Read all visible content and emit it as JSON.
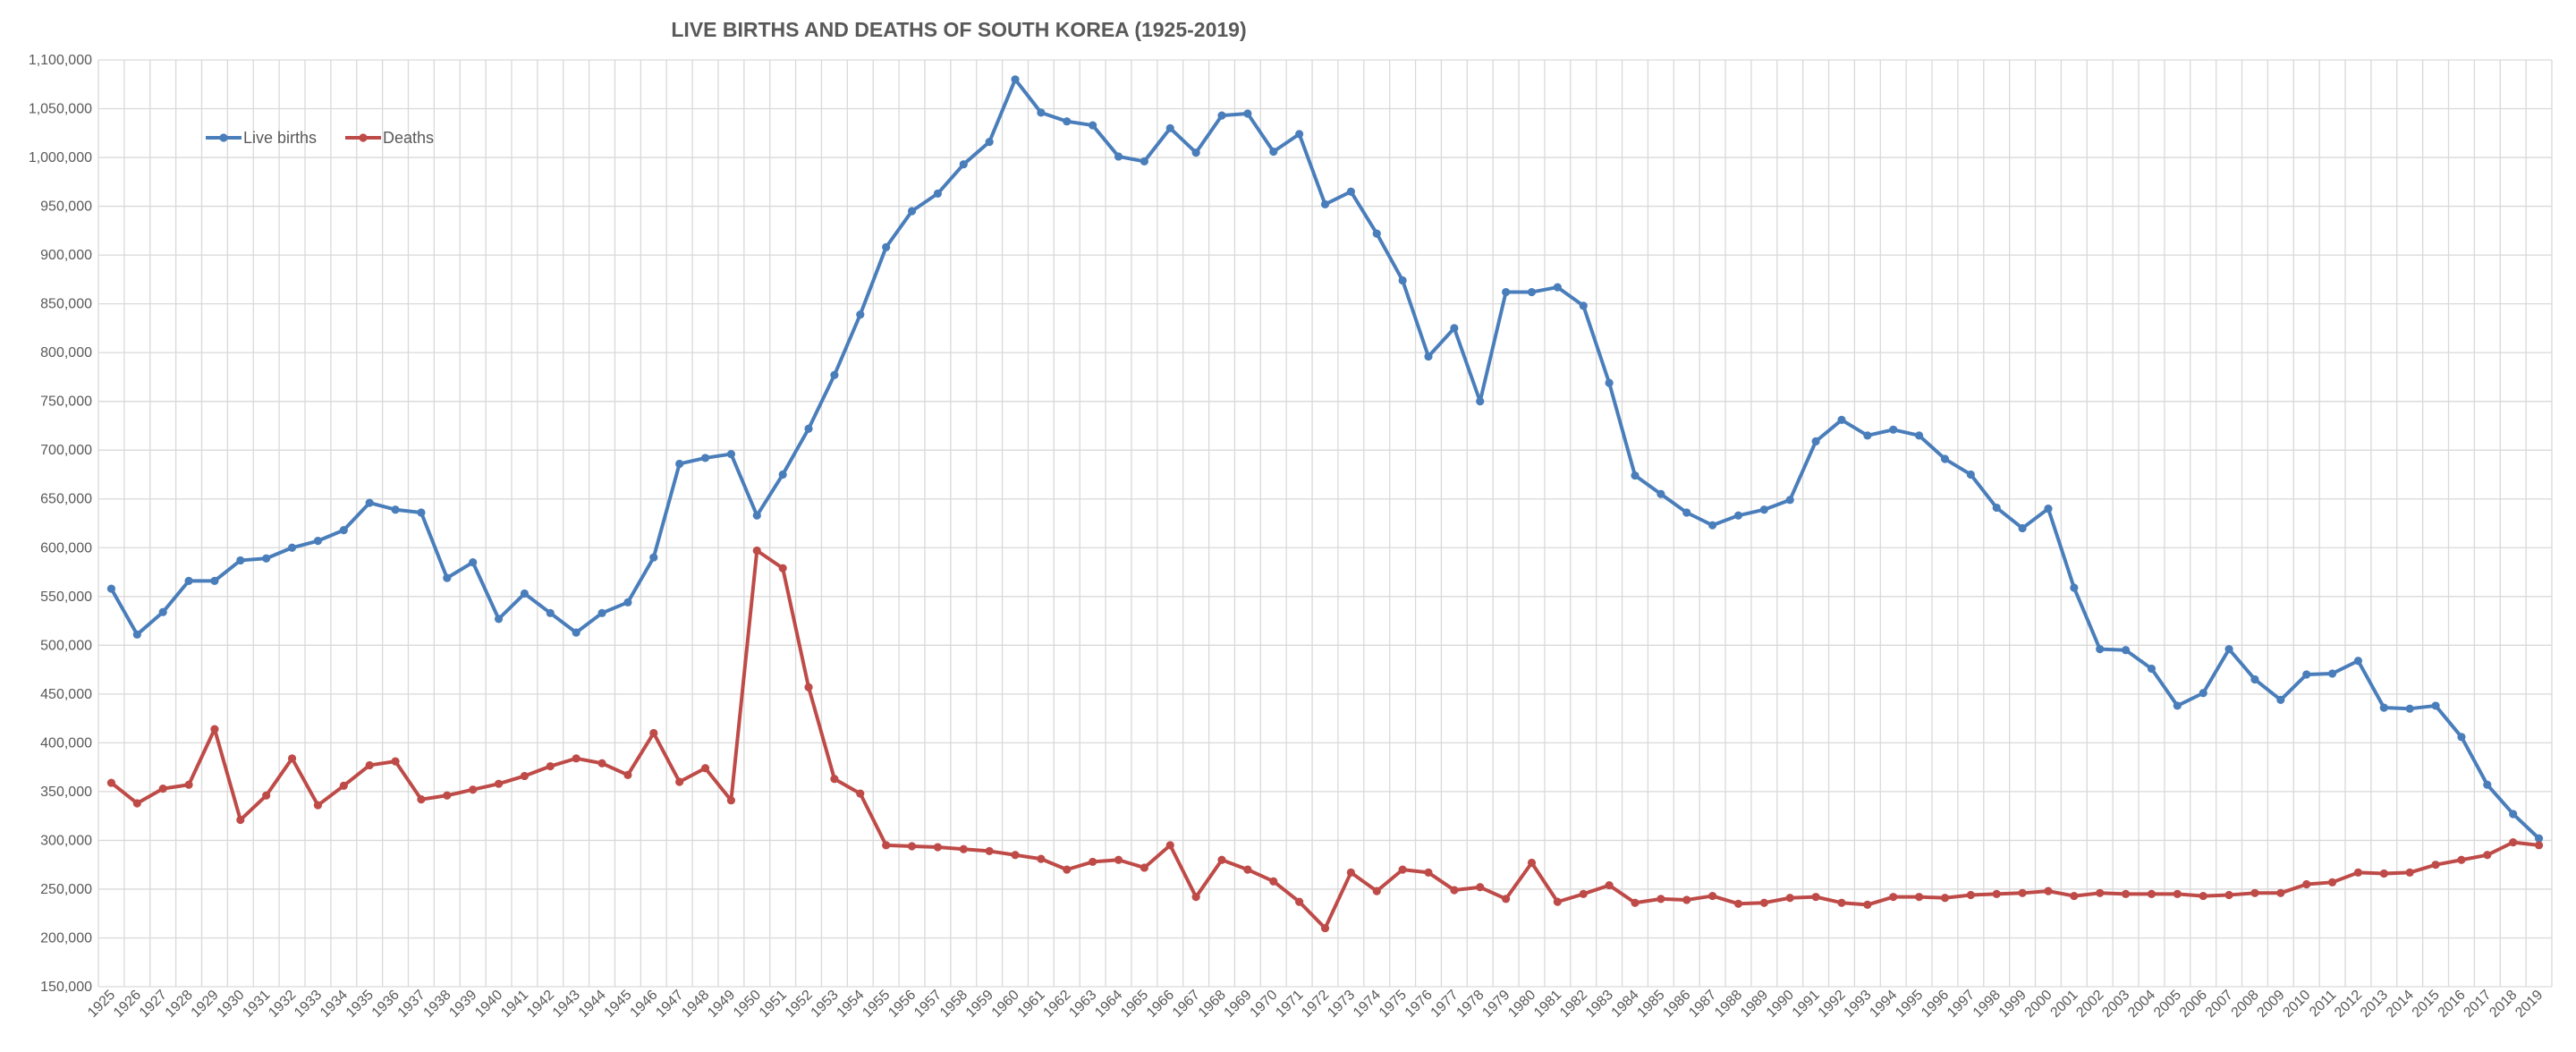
{
  "chart_data": {
    "type": "line",
    "title": "LIVE BIRTHS AND DEATHS OF SOUTH KOREA (1925-2019)",
    "xlabel": "",
    "ylabel": "",
    "x": [
      1925,
      1926,
      1927,
      1928,
      1929,
      1930,
      1931,
      1932,
      1933,
      1934,
      1935,
      1936,
      1937,
      1938,
      1939,
      1940,
      1941,
      1942,
      1943,
      1944,
      1945,
      1946,
      1947,
      1948,
      1949,
      1950,
      1951,
      1952,
      1953,
      1954,
      1955,
      1956,
      1957,
      1958,
      1959,
      1960,
      1961,
      1962,
      1963,
      1964,
      1965,
      1966,
      1967,
      1968,
      1969,
      1970,
      1971,
      1972,
      1973,
      1974,
      1975,
      1976,
      1977,
      1978,
      1979,
      1980,
      1981,
      1982,
      1983,
      1984,
      1985,
      1986,
      1987,
      1988,
      1989,
      1990,
      1991,
      1992,
      1993,
      1994,
      1995,
      1996,
      1997,
      1998,
      1999,
      2000,
      2001,
      2002,
      2003,
      2004,
      2005,
      2006,
      2007,
      2008,
      2009,
      2010,
      2011,
      2012,
      2013,
      2014,
      2015,
      2016,
      2017,
      2018,
      2019
    ],
    "ylim": [
      150000,
      1100000
    ],
    "yticks": [
      150000,
      200000,
      250000,
      300000,
      350000,
      400000,
      450000,
      500000,
      550000,
      600000,
      650000,
      700000,
      750000,
      800000,
      850000,
      900000,
      950000,
      1000000,
      1050000,
      1100000
    ],
    "ytick_labels": [
      "150,000",
      "200,000",
      "250,000",
      "300,000",
      "350,000",
      "400,000",
      "450,000",
      "500,000",
      "550,000",
      "600,000",
      "650,000",
      "700,000",
      "750,000",
      "800,000",
      "850,000",
      "900,000",
      "950,000",
      "1,000,000",
      "1,050,000",
      "1,100,000"
    ],
    "grid": true,
    "legend_position": "top-left",
    "series": [
      {
        "name": "Live births",
        "color": "#4a7ebb",
        "values": [
          558000,
          511000,
          534000,
          566000,
          566000,
          587000,
          589000,
          600000,
          607000,
          618000,
          646000,
          639000,
          636000,
          569000,
          585000,
          527000,
          553000,
          533000,
          513000,
          533000,
          544000,
          590000,
          686000,
          692000,
          696000,
          633000,
          675000,
          722000,
          777000,
          839000,
          908000,
          945000,
          963000,
          993000,
          1016000,
          1080000,
          1046000,
          1037000,
          1033000,
          1001000,
          996000,
          1030000,
          1005000,
          1043000,
          1045000,
          1006000,
          1024000,
          952000,
          965000,
          922000,
          874000,
          796000,
          825000,
          750000,
          862000,
          862000,
          867000,
          848000,
          769000,
          674000,
          655000,
          636000,
          623000,
          633000,
          639000,
          649000,
          709000,
          731000,
          715000,
          721000,
          715000,
          691000,
          675000,
          641000,
          620000,
          640000,
          559000,
          496000,
          495000,
          476000,
          438000,
          451000,
          496000,
          465000,
          444000,
          470000,
          471000,
          484000,
          436000,
          435000,
          438000,
          406000,
          357000,
          327000,
          302000
        ]
      },
      {
        "name": "Deaths",
        "color": "#be4b48",
        "values": [
          359000,
          338000,
          353000,
          357000,
          414000,
          321000,
          346000,
          384000,
          336000,
          356000,
          377000,
          381000,
          342000,
          346000,
          352000,
          358000,
          366000,
          376000,
          384000,
          379000,
          367000,
          410000,
          360000,
          374000,
          341000,
          597000,
          579000,
          457000,
          363000,
          348000,
          295000,
          294000,
          293000,
          291000,
          289000,
          285000,
          281000,
          270000,
          278000,
          280000,
          272000,
          295000,
          242000,
          280000,
          270000,
          258000,
          237000,
          210000,
          267000,
          248000,
          270000,
          267000,
          249000,
          252000,
          240000,
          277000,
          237000,
          245000,
          254000,
          236000,
          240000,
          239000,
          243000,
          235000,
          236000,
          241000,
          242000,
          236000,
          234000,
          242000,
          242000,
          241000,
          244000,
          245000,
          246000,
          248000,
          243000,
          246000,
          245000,
          245000,
          245000,
          243000,
          244000,
          246000,
          246000,
          255000,
          257000,
          267000,
          266000,
          267000,
          275000,
          280000,
          285000,
          298000,
          295000
        ]
      }
    ]
  }
}
